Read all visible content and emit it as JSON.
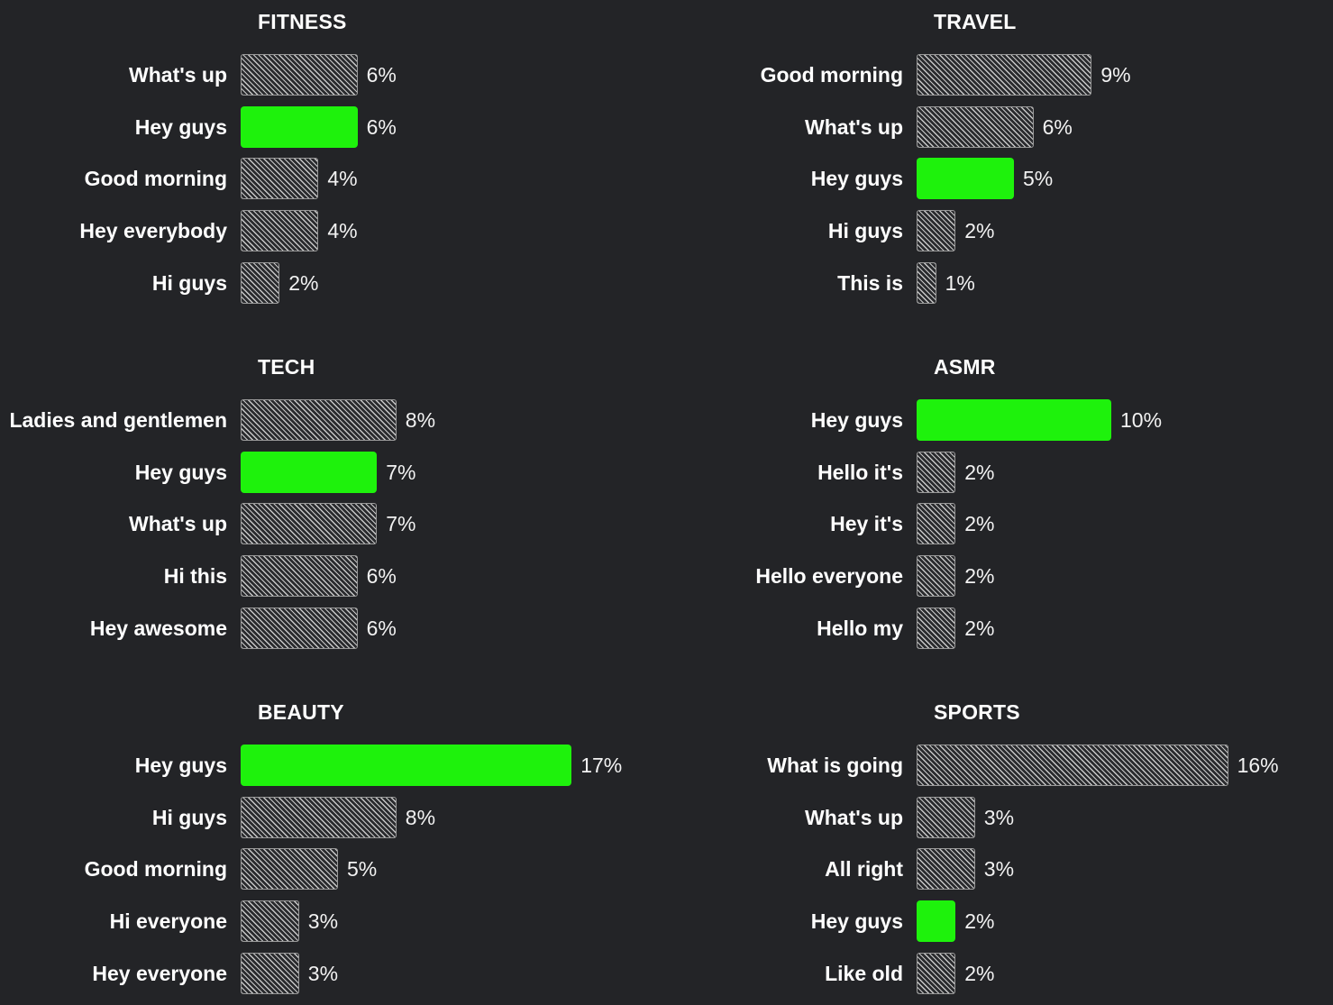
{
  "chart_data": [
    {
      "type": "bar",
      "orientation": "horizontal",
      "title": "FITNESS",
      "unit": "%",
      "categories": [
        "What's up",
        "Hey guys",
        "Good morning",
        "Hey everybody",
        "Hi guys"
      ],
      "values": [
        6,
        6,
        4,
        4,
        2
      ],
      "value_labels": [
        "6%",
        "6%",
        "4%",
        "4%",
        "2%"
      ],
      "highlight": [
        false,
        true,
        false,
        false,
        false
      ]
    },
    {
      "type": "bar",
      "orientation": "horizontal",
      "title": "TRAVEL",
      "unit": "%",
      "categories": [
        "Good morning",
        "What's up",
        "Hey guys",
        "Hi guys",
        "This is"
      ],
      "values": [
        9,
        6,
        5,
        2,
        1
      ],
      "value_labels": [
        "9%",
        "6%",
        "5%",
        "2%",
        "1%"
      ],
      "highlight": [
        false,
        false,
        true,
        false,
        false
      ]
    },
    {
      "type": "bar",
      "orientation": "horizontal",
      "title": "TECH",
      "unit": "%",
      "categories": [
        "Ladies and gentlemen",
        "Hey guys",
        "What's up",
        "Hi this",
        "Hey awesome"
      ],
      "values": [
        8,
        7,
        7,
        6,
        6
      ],
      "value_labels": [
        "8%",
        "7%",
        "7%",
        "6%",
        "6%"
      ],
      "highlight": [
        false,
        true,
        false,
        false,
        false
      ]
    },
    {
      "type": "bar",
      "orientation": "horizontal",
      "title": "ASMR",
      "unit": "%",
      "categories": [
        "Hey guys",
        "Hello it's",
        "Hey it's",
        "Hello everyone",
        "Hello my"
      ],
      "values": [
        10,
        2,
        2,
        2,
        2
      ],
      "value_labels": [
        "10%",
        "2%",
        "2%",
        "2%",
        "2%"
      ],
      "highlight": [
        true,
        false,
        false,
        false,
        false
      ]
    },
    {
      "type": "bar",
      "orientation": "horizontal",
      "title": "BEAUTY",
      "unit": "%",
      "categories": [
        "Hey guys",
        "Hi guys",
        "Good morning",
        "Hi everyone",
        "Hey everyone"
      ],
      "values": [
        17,
        8,
        5,
        3,
        3
      ],
      "value_labels": [
        "17%",
        "8%",
        "5%",
        "3%",
        "3%"
      ],
      "highlight": [
        true,
        false,
        false,
        false,
        false
      ]
    },
    {
      "type": "bar",
      "orientation": "horizontal",
      "title": "SPORTS",
      "unit": "%",
      "categories": [
        "What is going",
        "What's up",
        "All right",
        "Hey guys",
        "Like old"
      ],
      "values": [
        16,
        3,
        3,
        2,
        2
      ],
      "value_labels": [
        "16%",
        "3%",
        "3%",
        "2%",
        "2%"
      ],
      "highlight": [
        false,
        false,
        false,
        true,
        false
      ]
    }
  ],
  "colors": {
    "background": "#232427",
    "highlight_bar": "#1ef20c",
    "hatch": "#c8c8c8",
    "text": "#ffffff"
  }
}
